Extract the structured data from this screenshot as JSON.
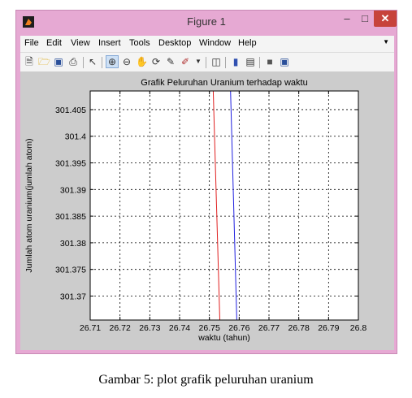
{
  "window": {
    "title": "Figure 1"
  },
  "menu": [
    "File",
    "Edit",
    "View",
    "Insert",
    "Tools",
    "Desktop",
    "Window",
    "Help"
  ],
  "toolbar_icons": [
    "new-file-icon",
    "open-folder-icon",
    "save-icon",
    "print-icon",
    "pointer-icon",
    "zoom-in-icon",
    "zoom-out-icon",
    "pan-icon",
    "rotate-icon",
    "data-cursor-icon",
    "brush-icon",
    "link-icon",
    "colorbar-icon",
    "legend-icon",
    "hide-plot-tools-icon",
    "show-plot-tools-icon"
  ],
  "chart_data": {
    "type": "line",
    "title": "Grafik Peluruhan Uranium terhadap waktu",
    "xlabel": "waktu (tahun)",
    "ylabel": "Jumlah atom uranium(jumlah atom)",
    "xlim": [
      26.71,
      26.8
    ],
    "ylim": [
      301.3655,
      301.4085
    ],
    "x_ticks": [
      "26.71",
      "26.72",
      "26.73",
      "26.74",
      "26.75",
      "26.76",
      "26.77",
      "26.78",
      "26.79",
      "26.8"
    ],
    "y_ticks": [
      "301.37",
      "301.375",
      "301.38",
      "301.385",
      "301.39",
      "301.395",
      "301.4",
      "301.405"
    ],
    "grid": true,
    "series": [
      {
        "color": "#e02020",
        "points": [
          [
            26.7513,
            301.4085
          ],
          [
            26.7535,
            301.3655
          ]
        ]
      },
      {
        "color": "#2020e0",
        "points": [
          [
            26.7571,
            301.4085
          ],
          [
            26.7592,
            301.3655
          ]
        ]
      }
    ]
  },
  "caption": "Gambar 5: plot grafik peluruhan uranium"
}
